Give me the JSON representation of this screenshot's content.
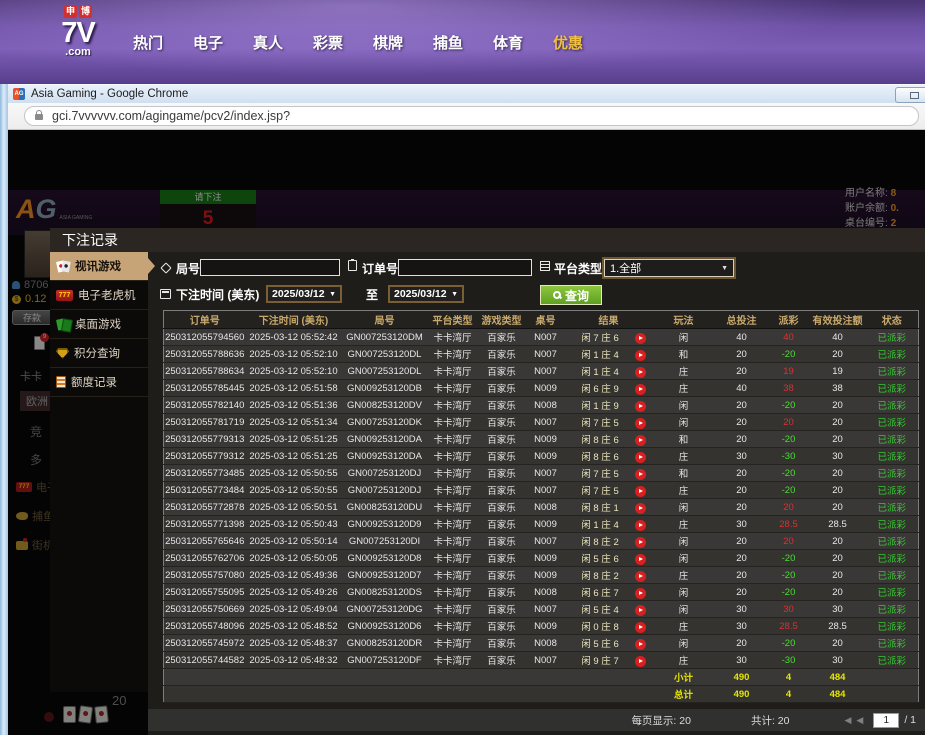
{
  "top_nav": {
    "logo": {
      "badge1": "申",
      "badge2": "博",
      "main": "7V",
      "suffix": ".com"
    },
    "items": [
      {
        "label": "热门"
      },
      {
        "label": "电子"
      },
      {
        "label": "真人"
      },
      {
        "label": "彩票"
      },
      {
        "label": "棋牌"
      },
      {
        "label": "捕鱼"
      },
      {
        "label": "体育"
      },
      {
        "label": "优惠",
        "highlighted": true
      }
    ]
  },
  "browser": {
    "title": "Asia Gaming - Google Chrome",
    "url": "gci.7vvvvvv.com/agingame/pcv2/index.jsp?"
  },
  "lobby": {
    "brand_a": "A",
    "brand_g": "G",
    "brand_sub": "ASIA GAMING",
    "bet_prompt": {
      "label": "请下注",
      "countdown": "5"
    },
    "account": [
      {
        "label": "用户名称:",
        "value": "8"
      },
      {
        "label": "账户余额:",
        "value": "0."
      },
      {
        "label": "桌台编号:",
        "value": "2"
      }
    ],
    "left": {
      "user_id": "8706",
      "balance": "0.12",
      "deposit": "存款",
      "badge": "9",
      "item_kaka": "卡卡",
      "item_europe": "欧洲",
      "item_jing": "竞",
      "item_duo": "多",
      "item_dianzi": "电子",
      "item_buyu": "捕鱼",
      "item_jieji": "街机电玩",
      "corner_number": "20"
    }
  },
  "modal": {
    "title": "下注记录",
    "sidebar": [
      {
        "label": "视讯游戏",
        "icon": "cards-icon",
        "active": true
      },
      {
        "label": "电子老虎机",
        "icon": "slot-777-icon",
        "active": false
      },
      {
        "label": "桌面游戏",
        "icon": "table-cards-icon",
        "active": false
      },
      {
        "label": "积分查询",
        "icon": "gem-icon",
        "active": false
      },
      {
        "label": "额度记录",
        "icon": "document-icon",
        "active": false
      }
    ],
    "filters": {
      "round_label": "局号",
      "round_value": "",
      "order_label": "订单号",
      "order_value": "",
      "platform_label": "平台类型",
      "platform_value": "1.全部",
      "time_label": "下注时间 (美东)",
      "date_from": "2025/03/12",
      "to_label": "至",
      "date_to": "2025/03/12",
      "search_label": "查询"
    },
    "table": {
      "headers": [
        "订单号",
        "下注时间 (美东)",
        "局号",
        "平台类型",
        "游戏类型",
        "桌号",
        "结果",
        "玩法",
        "总投注",
        "派彩",
        "有效投注额",
        "状态"
      ],
      "rows": [
        [
          "250312055794560",
          "2025-03-12 05:52:42",
          "GN007253120DM",
          "卡卡湾厅",
          "百家乐",
          "N007",
          "闲 7 庄 6",
          "闲",
          "40",
          "40",
          "40",
          "已派彩"
        ],
        [
          "250312055788636",
          "2025-03-12 05:52:10",
          "GN007253120DL",
          "卡卡湾厅",
          "百家乐",
          "N007",
          "闲 1 庄 4",
          "和",
          "20",
          "-20",
          "20",
          "已派彩"
        ],
        [
          "250312055788634",
          "2025-03-12 05:52:10",
          "GN007253120DL",
          "卡卡湾厅",
          "百家乐",
          "N007",
          "闲 1 庄 4",
          "庄",
          "20",
          "19",
          "19",
          "已派彩"
        ],
        [
          "250312055785445",
          "2025-03-12 05:51:58",
          "GN009253120DB",
          "卡卡湾厅",
          "百家乐",
          "N009",
          "闲 6 庄 9",
          "庄",
          "40",
          "38",
          "38",
          "已派彩"
        ],
        [
          "250312055782140",
          "2025-03-12 05:51:36",
          "GN008253120DV",
          "卡卡湾厅",
          "百家乐",
          "N008",
          "闲 1 庄 9",
          "闲",
          "20",
          "-20",
          "20",
          "已派彩"
        ],
        [
          "250312055781719",
          "2025-03-12 05:51:34",
          "GN007253120DK",
          "卡卡湾厅",
          "百家乐",
          "N007",
          "闲 7 庄 5",
          "闲",
          "20",
          "20",
          "20",
          "已派彩"
        ],
        [
          "250312055779313",
          "2025-03-12 05:51:25",
          "GN009253120DA",
          "卡卡湾厅",
          "百家乐",
          "N009",
          "闲 8 庄 6",
          "和",
          "20",
          "-20",
          "20",
          "已派彩"
        ],
        [
          "250312055779312",
          "2025-03-12 05:51:25",
          "GN009253120DA",
          "卡卡湾厅",
          "百家乐",
          "N009",
          "闲 8 庄 6",
          "庄",
          "30",
          "-30",
          "30",
          "已派彩"
        ],
        [
          "250312055773485",
          "2025-03-12 05:50:55",
          "GN007253120DJ",
          "卡卡湾厅",
          "百家乐",
          "N007",
          "闲 7 庄 5",
          "和",
          "20",
          "-20",
          "20",
          "已派彩"
        ],
        [
          "250312055773484",
          "2025-03-12 05:50:55",
          "GN007253120DJ",
          "卡卡湾厅",
          "百家乐",
          "N007",
          "闲 7 庄 5",
          "庄",
          "20",
          "-20",
          "20",
          "已派彩"
        ],
        [
          "250312055772878",
          "2025-03-12 05:50:51",
          "GN008253120DU",
          "卡卡湾厅",
          "百家乐",
          "N008",
          "闲 8 庄 1",
          "闲",
          "20",
          "20",
          "20",
          "已派彩"
        ],
        [
          "250312055771398",
          "2025-03-12 05:50:43",
          "GN009253120D9",
          "卡卡湾厅",
          "百家乐",
          "N009",
          "闲 1 庄 4",
          "庄",
          "30",
          "28.5",
          "28.5",
          "已派彩"
        ],
        [
          "250312055765646",
          "2025-03-12 05:50:14",
          "GN007253120DI",
          "卡卡湾厅",
          "百家乐",
          "N007",
          "闲 8 庄 2",
          "闲",
          "20",
          "20",
          "20",
          "已派彩"
        ],
        [
          "250312055762706",
          "2025-03-12 05:50:05",
          "GN009253120D8",
          "卡卡湾厅",
          "百家乐",
          "N009",
          "闲 5 庄 6",
          "闲",
          "20",
          "-20",
          "20",
          "已派彩"
        ],
        [
          "250312055757080",
          "2025-03-12 05:49:36",
          "GN009253120D7",
          "卡卡湾厅",
          "百家乐",
          "N009",
          "闲 8 庄 2",
          "庄",
          "20",
          "-20",
          "20",
          "已派彩"
        ],
        [
          "250312055755095",
          "2025-03-12 05:49:26",
          "GN008253120DS",
          "卡卡湾厅",
          "百家乐",
          "N008",
          "闲 6 庄 7",
          "闲",
          "20",
          "-20",
          "20",
          "已派彩"
        ],
        [
          "250312055750669",
          "2025-03-12 05:49:04",
          "GN007253120DG",
          "卡卡湾厅",
          "百家乐",
          "N007",
          "闲 5 庄 4",
          "闲",
          "30",
          "30",
          "30",
          "已派彩"
        ],
        [
          "250312055748096",
          "2025-03-12 05:48:52",
          "GN009253120D6",
          "卡卡湾厅",
          "百家乐",
          "N009",
          "闲 0 庄 8",
          "庄",
          "30",
          "28.5",
          "28.5",
          "已派彩"
        ],
        [
          "250312055745972",
          "2025-03-12 05:48:37",
          "GN008253120DR",
          "卡卡湾厅",
          "百家乐",
          "N008",
          "闲 5 庄 6",
          "闲",
          "20",
          "-20",
          "20",
          "已派彩"
        ],
        [
          "250312055744582",
          "2025-03-12 05:48:32",
          "GN007253120DF",
          "卡卡湾厅",
          "百家乐",
          "N007",
          "闲 9 庄 7",
          "庄",
          "30",
          "-30",
          "30",
          "已派彩"
        ]
      ],
      "subtotal": {
        "label": "小计",
        "total": "490",
        "payout": "4",
        "valid": "484"
      },
      "grand_total": {
        "label": "总计",
        "total": "490",
        "payout": "4",
        "valid": "484"
      }
    },
    "footer": {
      "page_size": "每页显示: 20",
      "total_count": "共计: 20",
      "prev_first": "◀",
      "prev": "◀",
      "page": "1",
      "page_total": "/ 1"
    }
  },
  "colors": {
    "accent_gold": "#c7a478",
    "header_gold": "#c9a96b",
    "win_red": "#d83232",
    "loss_green": "#4ade33",
    "paid_green": "#38c832",
    "total_yellow": "#e6e600",
    "search_green": "#6fae2a",
    "nav_highlight": "#f0c040"
  }
}
